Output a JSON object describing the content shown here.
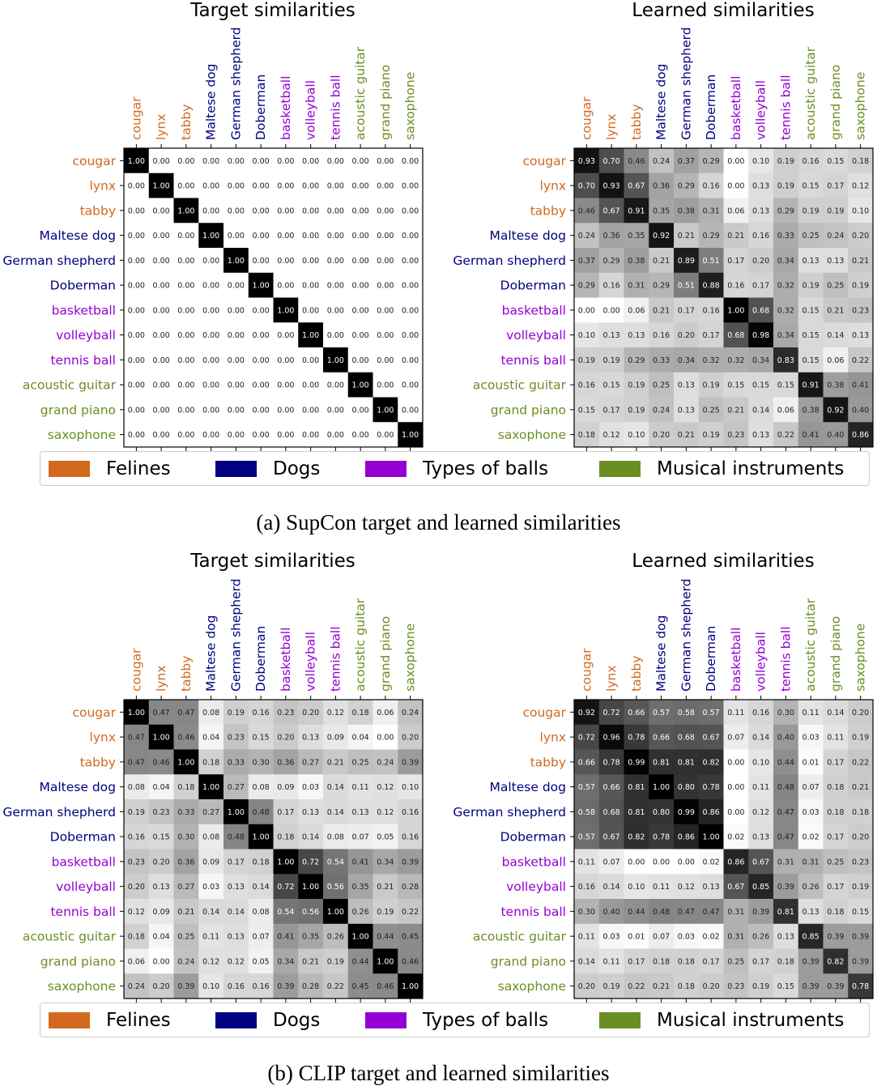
{
  "categories": [
    "cougar",
    "lynx",
    "tabby",
    "Maltese dog",
    "German shepherd",
    "Doberman",
    "basketball",
    "volleyball",
    "tennis ball",
    "acoustic guitar",
    "grand piano",
    "saxophone"
  ],
  "category_groups": [
    0,
    0,
    0,
    1,
    1,
    1,
    2,
    2,
    2,
    3,
    3,
    3
  ],
  "legend": [
    {
      "label": "Felines",
      "color": "#D2691E"
    },
    {
      "label": "Dogs",
      "color": "#000080"
    },
    {
      "label": "Types of balls",
      "color": "#9400D3"
    },
    {
      "label": "Musical instruments",
      "color": "#6B8E23"
    }
  ],
  "captions": {
    "a": "(a) SupCon target and learned similarities",
    "b": "(b) CLIP target and learned similarities"
  },
  "chart_data": [
    {
      "type": "heatmap",
      "title": "Target similarities",
      "figure": "a",
      "colormap": "gray_r",
      "vmin": 0,
      "vmax": 1,
      "values": [
        [
          1.0,
          0.0,
          0.0,
          0.0,
          0.0,
          0.0,
          0.0,
          0.0,
          0.0,
          0.0,
          0.0,
          0.0
        ],
        [
          0.0,
          1.0,
          0.0,
          0.0,
          0.0,
          0.0,
          0.0,
          0.0,
          0.0,
          0.0,
          0.0,
          0.0
        ],
        [
          0.0,
          0.0,
          1.0,
          0.0,
          0.0,
          0.0,
          0.0,
          0.0,
          0.0,
          0.0,
          0.0,
          0.0
        ],
        [
          0.0,
          0.0,
          0.0,
          1.0,
          0.0,
          0.0,
          0.0,
          0.0,
          0.0,
          0.0,
          0.0,
          0.0
        ],
        [
          0.0,
          0.0,
          0.0,
          0.0,
          1.0,
          0.0,
          0.0,
          0.0,
          0.0,
          0.0,
          0.0,
          0.0
        ],
        [
          0.0,
          0.0,
          0.0,
          0.0,
          0.0,
          1.0,
          0.0,
          0.0,
          0.0,
          0.0,
          0.0,
          0.0
        ],
        [
          0.0,
          0.0,
          0.0,
          0.0,
          0.0,
          0.0,
          1.0,
          0.0,
          0.0,
          0.0,
          0.0,
          0.0
        ],
        [
          0.0,
          0.0,
          0.0,
          0.0,
          0.0,
          0.0,
          0.0,
          1.0,
          0.0,
          0.0,
          0.0,
          0.0
        ],
        [
          0.0,
          0.0,
          0.0,
          0.0,
          0.0,
          0.0,
          0.0,
          0.0,
          1.0,
          0.0,
          0.0,
          0.0
        ],
        [
          0.0,
          0.0,
          0.0,
          0.0,
          0.0,
          0.0,
          0.0,
          0.0,
          0.0,
          1.0,
          0.0,
          0.0
        ],
        [
          0.0,
          0.0,
          0.0,
          0.0,
          0.0,
          0.0,
          0.0,
          0.0,
          0.0,
          0.0,
          1.0,
          0.0
        ],
        [
          0.0,
          0.0,
          0.0,
          0.0,
          0.0,
          0.0,
          0.0,
          0.0,
          0.0,
          0.0,
          0.0,
          1.0
        ]
      ]
    },
    {
      "type": "heatmap",
      "title": "Learned similarities",
      "figure": "a",
      "colormap": "gray_r",
      "vmin": 0,
      "vmax": 1,
      "values": [
        [
          0.93,
          0.7,
          0.46,
          0.24,
          0.37,
          0.29,
          0.0,
          0.1,
          0.19,
          0.16,
          0.15,
          0.18
        ],
        [
          0.7,
          0.93,
          0.67,
          0.36,
          0.29,
          0.16,
          0.0,
          0.13,
          0.19,
          0.15,
          0.17,
          0.12
        ],
        [
          0.46,
          0.67,
          0.91,
          0.35,
          0.38,
          0.31,
          0.06,
          0.13,
          0.29,
          0.19,
          0.19,
          0.1
        ],
        [
          0.24,
          0.36,
          0.35,
          0.92,
          0.21,
          0.29,
          0.21,
          0.16,
          0.33,
          0.25,
          0.24,
          0.2
        ],
        [
          0.37,
          0.29,
          0.38,
          0.21,
          0.89,
          0.51,
          0.17,
          0.2,
          0.34,
          0.13,
          0.13,
          0.21
        ],
        [
          0.29,
          0.16,
          0.31,
          0.29,
          0.51,
          0.88,
          0.16,
          0.17,
          0.32,
          0.19,
          0.25,
          0.19
        ],
        [
          0.0,
          0.0,
          0.06,
          0.21,
          0.17,
          0.16,
          1.0,
          0.68,
          0.32,
          0.15,
          0.21,
          0.23
        ],
        [
          0.1,
          0.13,
          0.13,
          0.16,
          0.2,
          0.17,
          0.68,
          0.98,
          0.34,
          0.15,
          0.14,
          0.13
        ],
        [
          0.19,
          0.19,
          0.29,
          0.33,
          0.34,
          0.32,
          0.32,
          0.34,
          0.83,
          0.15,
          0.06,
          0.22
        ],
        [
          0.16,
          0.15,
          0.19,
          0.25,
          0.13,
          0.19,
          0.15,
          0.15,
          0.15,
          0.91,
          0.38,
          0.41
        ],
        [
          0.15,
          0.17,
          0.19,
          0.24,
          0.13,
          0.25,
          0.21,
          0.14,
          0.06,
          0.38,
          0.92,
          0.4
        ],
        [
          0.18,
          0.12,
          0.1,
          0.2,
          0.21,
          0.19,
          0.23,
          0.13,
          0.22,
          0.41,
          0.4,
          0.86
        ]
      ]
    },
    {
      "type": "heatmap",
      "title": "Target similarities",
      "figure": "b",
      "colormap": "gray_r",
      "vmin": 0,
      "vmax": 1,
      "values": [
        [
          1.0,
          0.47,
          0.47,
          0.08,
          0.19,
          0.16,
          0.23,
          0.2,
          0.12,
          0.18,
          0.06,
          0.24
        ],
        [
          0.47,
          1.0,
          0.46,
          0.04,
          0.23,
          0.15,
          0.2,
          0.13,
          0.09,
          0.04,
          0.0,
          0.2
        ],
        [
          0.47,
          0.46,
          1.0,
          0.18,
          0.33,
          0.3,
          0.36,
          0.27,
          0.21,
          0.25,
          0.24,
          0.39
        ],
        [
          0.08,
          0.04,
          0.18,
          1.0,
          0.27,
          0.08,
          0.09,
          0.03,
          0.14,
          0.11,
          0.12,
          0.1
        ],
        [
          0.19,
          0.23,
          0.33,
          0.27,
          1.0,
          0.48,
          0.17,
          0.13,
          0.14,
          0.13,
          0.12,
          0.16
        ],
        [
          0.16,
          0.15,
          0.3,
          0.08,
          0.48,
          1.0,
          0.18,
          0.14,
          0.08,
          0.07,
          0.05,
          0.16
        ],
        [
          0.23,
          0.2,
          0.36,
          0.09,
          0.17,
          0.18,
          1.0,
          0.72,
          0.54,
          0.41,
          0.34,
          0.39
        ],
        [
          0.2,
          0.13,
          0.27,
          0.03,
          0.13,
          0.14,
          0.72,
          1.0,
          0.56,
          0.35,
          0.21,
          0.28
        ],
        [
          0.12,
          0.09,
          0.21,
          0.14,
          0.14,
          0.08,
          0.54,
          0.56,
          1.0,
          0.26,
          0.19,
          0.22
        ],
        [
          0.18,
          0.04,
          0.25,
          0.11,
          0.13,
          0.07,
          0.41,
          0.35,
          0.26,
          1.0,
          0.44,
          0.45
        ],
        [
          0.06,
          0.0,
          0.24,
          0.12,
          0.12,
          0.05,
          0.34,
          0.21,
          0.19,
          0.44,
          1.0,
          0.46
        ],
        [
          0.24,
          0.2,
          0.39,
          0.1,
          0.16,
          0.16,
          0.39,
          0.28,
          0.22,
          0.45,
          0.46,
          1.0
        ]
      ]
    },
    {
      "type": "heatmap",
      "title": "Learned similarities",
      "figure": "b",
      "colormap": "gray_r",
      "vmin": 0,
      "vmax": 1,
      "values": [
        [
          0.92,
          0.72,
          0.66,
          0.57,
          0.58,
          0.57,
          0.11,
          0.16,
          0.3,
          0.11,
          0.14,
          0.2
        ],
        [
          0.72,
          0.96,
          0.78,
          0.66,
          0.68,
          0.67,
          0.07,
          0.14,
          0.4,
          0.03,
          0.11,
          0.19
        ],
        [
          0.66,
          0.78,
          0.99,
          0.81,
          0.81,
          0.82,
          0.0,
          0.1,
          0.44,
          0.01,
          0.17,
          0.22
        ],
        [
          0.57,
          0.66,
          0.81,
          1.0,
          0.8,
          0.78,
          0.0,
          0.11,
          0.48,
          0.07,
          0.18,
          0.21
        ],
        [
          0.58,
          0.68,
          0.81,
          0.8,
          0.99,
          0.86,
          0.0,
          0.12,
          0.47,
          0.03,
          0.18,
          0.18
        ],
        [
          0.57,
          0.67,
          0.82,
          0.78,
          0.86,
          1.0,
          0.02,
          0.13,
          0.47,
          0.02,
          0.17,
          0.2
        ],
        [
          0.11,
          0.07,
          0.0,
          0.0,
          0.0,
          0.02,
          0.86,
          0.67,
          0.31,
          0.31,
          0.25,
          0.23
        ],
        [
          0.16,
          0.14,
          0.1,
          0.11,
          0.12,
          0.13,
          0.67,
          0.85,
          0.39,
          0.26,
          0.17,
          0.19
        ],
        [
          0.3,
          0.4,
          0.44,
          0.48,
          0.47,
          0.47,
          0.31,
          0.39,
          0.81,
          0.13,
          0.18,
          0.15
        ],
        [
          0.11,
          0.03,
          0.01,
          0.07,
          0.03,
          0.02,
          0.31,
          0.26,
          0.13,
          0.85,
          0.39,
          0.39
        ],
        [
          0.14,
          0.11,
          0.17,
          0.18,
          0.18,
          0.17,
          0.25,
          0.17,
          0.18,
          0.39,
          0.82,
          0.39
        ],
        [
          0.2,
          0.19,
          0.22,
          0.21,
          0.18,
          0.2,
          0.23,
          0.19,
          0.15,
          0.39,
          0.39,
          0.78
        ]
      ]
    }
  ]
}
